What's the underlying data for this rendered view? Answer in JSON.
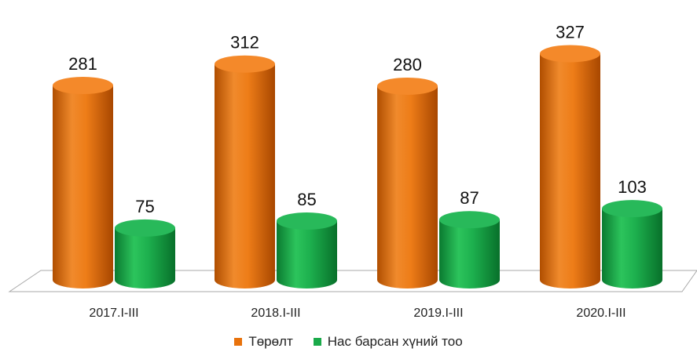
{
  "chart_data": {
    "type": "bar",
    "style": "3d-cylinder",
    "categories": [
      "2017.I-III",
      "2018.I-III",
      "2019.I-III",
      "2020.I-III"
    ],
    "series": [
      {
        "name": "Төрөлт",
        "values": [
          281,
          312,
          280,
          327
        ],
        "color": "#e8720c"
      },
      {
        "name": "Нас барсан хүний тоо",
        "values": [
          75,
          85,
          87,
          103
        ],
        "color": "#1aaa4a"
      }
    ],
    "ylim": [
      0,
      340
    ],
    "grid": false,
    "legend_position": "bottom",
    "data_labels": true
  }
}
